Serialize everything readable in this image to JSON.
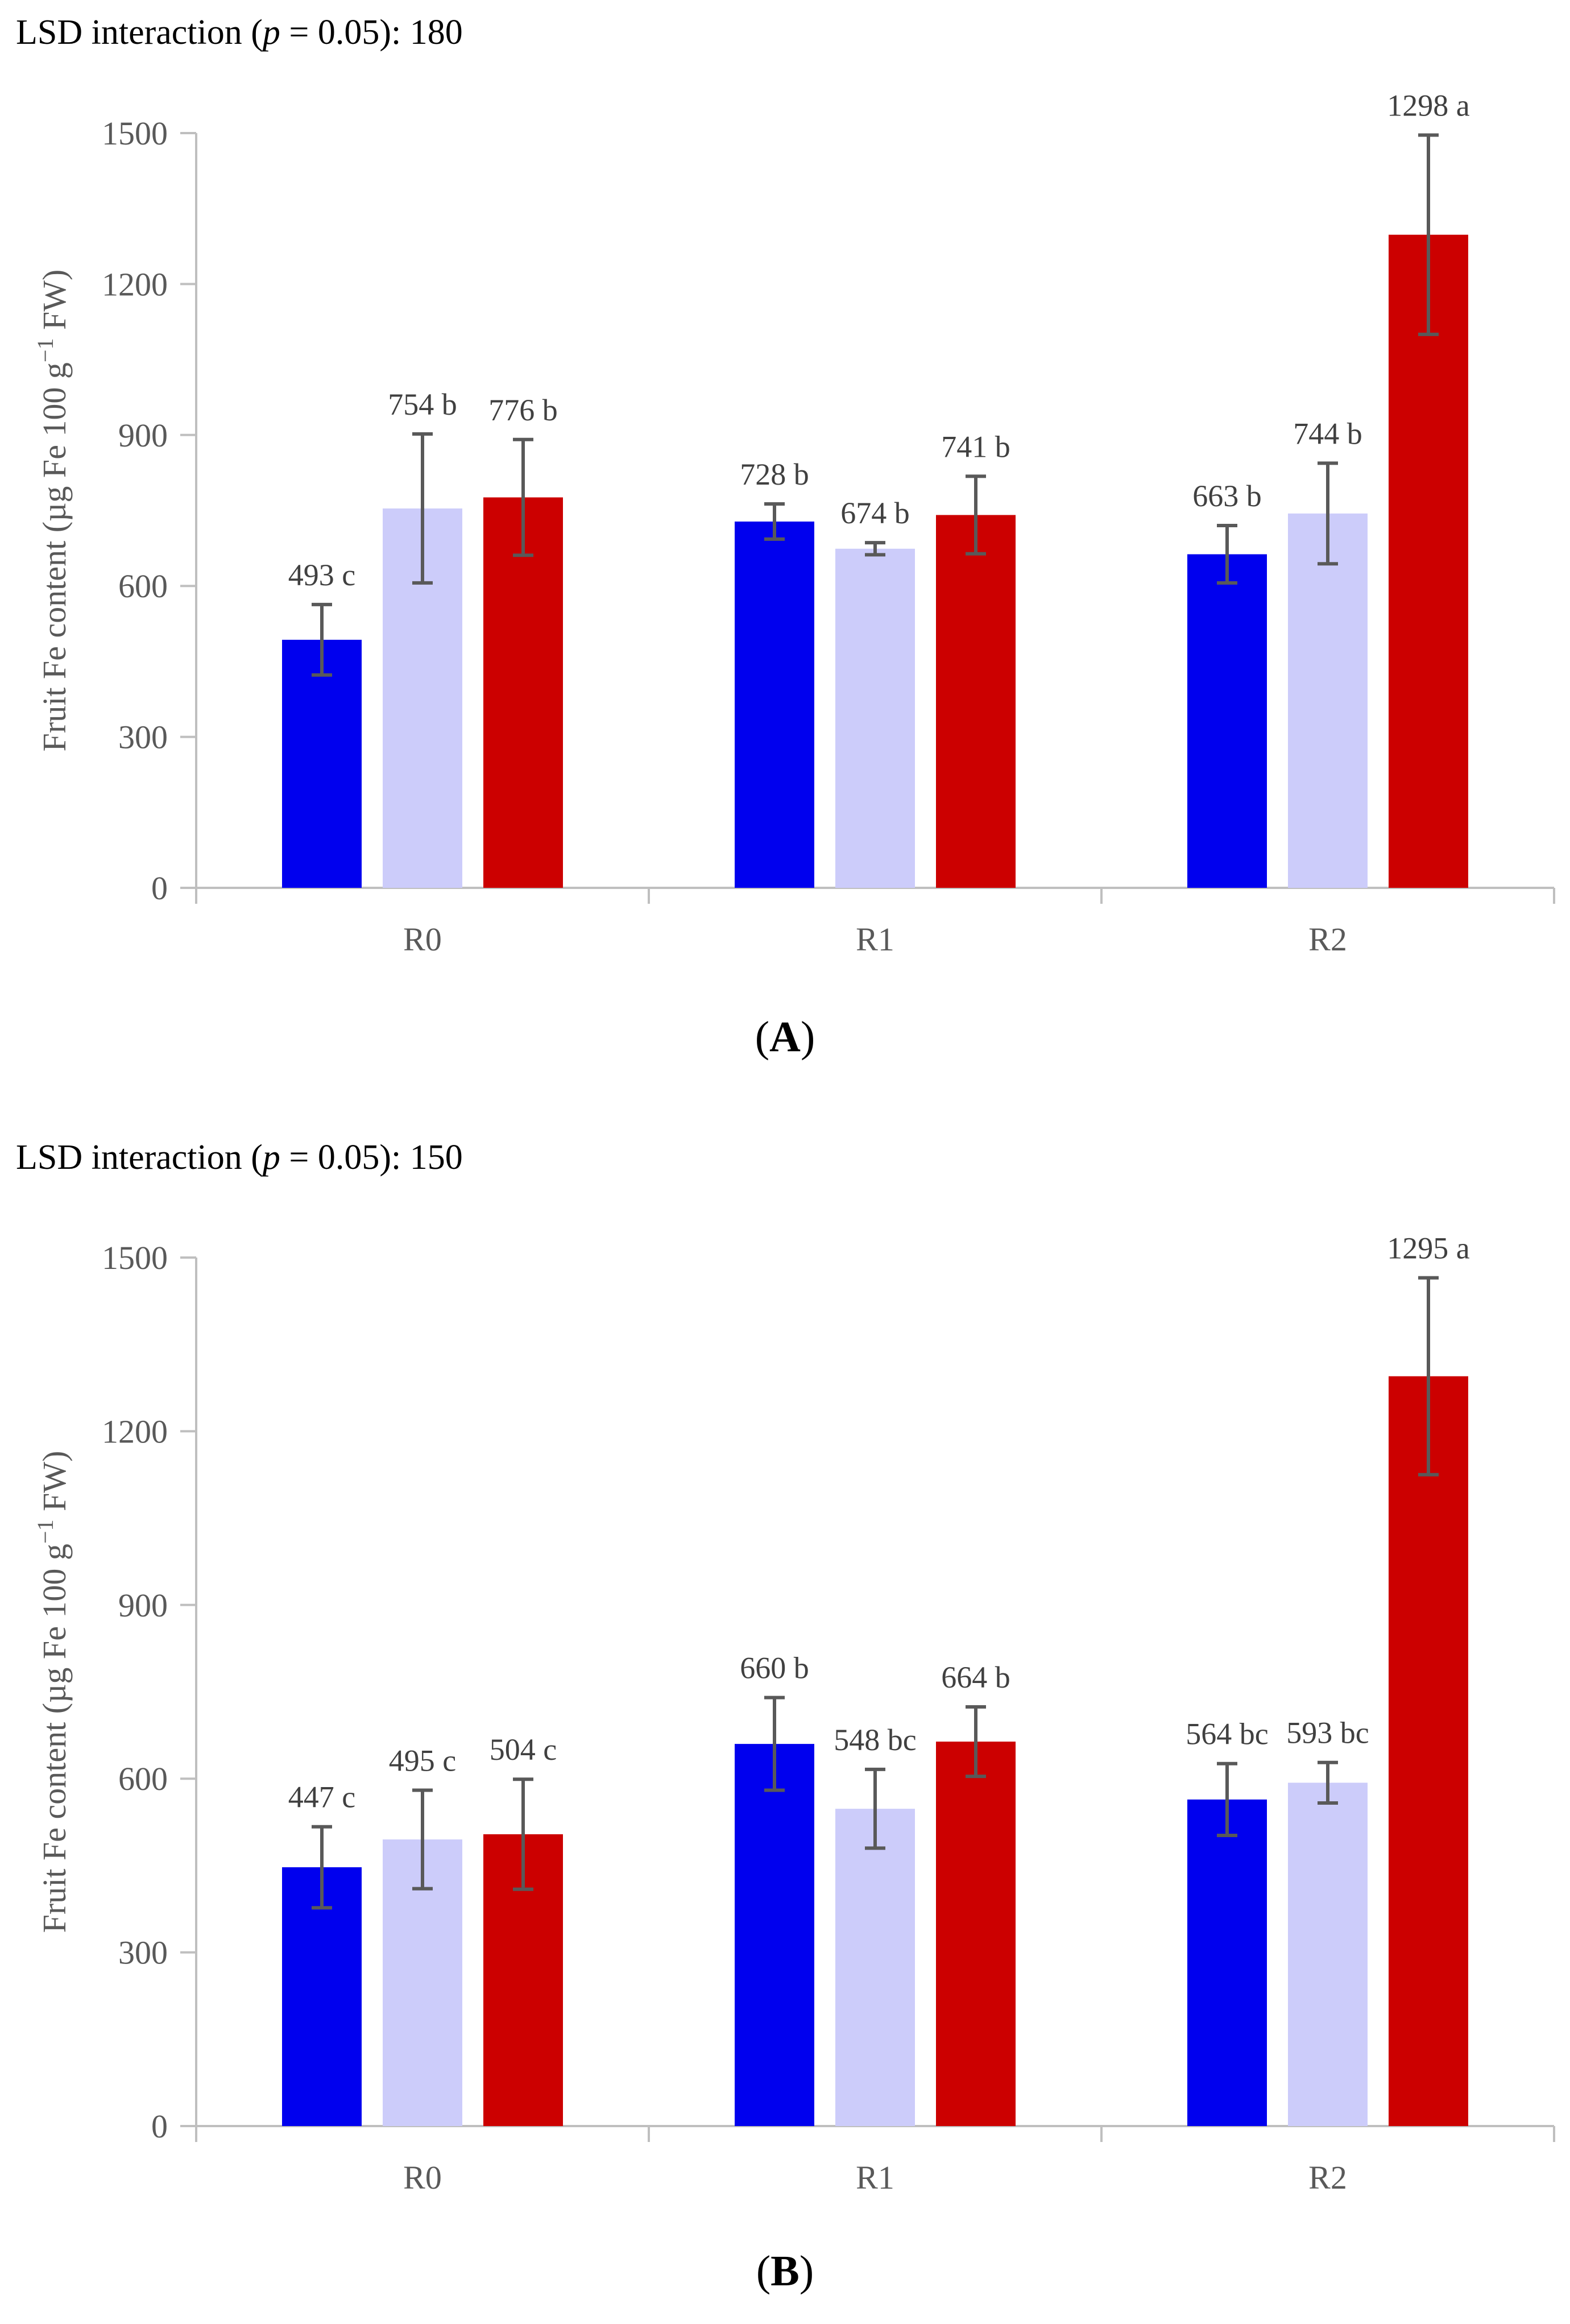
{
  "colors": {
    "series1": "#0000ee",
    "series2": "#ccccfa",
    "series3": "#cc0000",
    "axis": "#bfbfbf",
    "error": "#595959"
  },
  "chart_data": [
    {
      "type": "bar",
      "panel_label": "A",
      "lsd_prefix": "LSD interaction (",
      "lsd_p": "p",
      "lsd_suffix": " = 0.05): 180",
      "ylabel": "Fruit Fe content (µg Fe 100 g",
      "ylabel_sup": "−1",
      "ylabel_tail": " FW)",
      "ylim": [
        0,
        1500
      ],
      "yticks": [
        "0",
        "300",
        "600",
        "900",
        "1200",
        "1500"
      ],
      "categories": [
        "R0",
        "R1",
        "R2"
      ],
      "series": [
        {
          "name": "series-1",
          "values": [
            493,
            728,
            663
          ],
          "errors": [
            70,
            35,
            57
          ]
        },
        {
          "name": "series-2",
          "values": [
            754,
            674,
            744
          ],
          "errors": [
            148,
            12,
            100
          ]
        },
        {
          "name": "series-3",
          "values": [
            776,
            741,
            1298
          ],
          "errors": [
            115,
            77,
            198
          ]
        }
      ],
      "labels": [
        [
          "493 c",
          "728 b",
          "663 b"
        ],
        [
          "754 b",
          "674 b",
          "744 b"
        ],
        [
          "776 b",
          "741 b",
          "1298 a"
        ]
      ]
    },
    {
      "type": "bar",
      "panel_label": "B",
      "lsd_prefix": "LSD interaction (",
      "lsd_p": "p",
      "lsd_suffix": " = 0.05): 150",
      "ylabel": "Fruit Fe content (µg Fe 100 g",
      "ylabel_sup": "−1",
      "ylabel_tail": " FW)",
      "ylim": [
        0,
        1500
      ],
      "yticks": [
        "0",
        "300",
        "600",
        "900",
        "1200",
        "1500"
      ],
      "categories": [
        "R0",
        "R1",
        "R2"
      ],
      "series": [
        {
          "name": "series-1",
          "values": [
            447,
            660,
            564
          ],
          "errors": [
            70,
            80,
            62
          ]
        },
        {
          "name": "series-2",
          "values": [
            495,
            548,
            593
          ],
          "errors": [
            85,
            68,
            35
          ]
        },
        {
          "name": "series-3",
          "values": [
            504,
            664,
            1295
          ],
          "errors": [
            95,
            60,
            170
          ]
        }
      ],
      "labels": [
        [
          "447 c",
          "660 b",
          "564 bc"
        ],
        [
          "495 c",
          "548 bc",
          "593 bc"
        ],
        [
          "504 c",
          "664 b",
          "1295 a"
        ]
      ]
    }
  ]
}
